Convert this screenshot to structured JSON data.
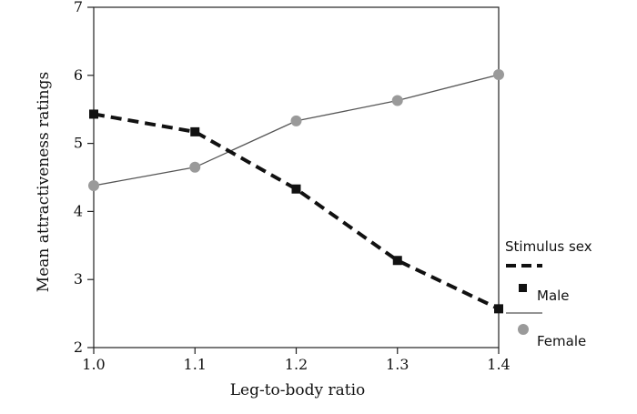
{
  "chart_data": {
    "type": "line",
    "title": "",
    "xlabel": "Leg-to-body ratio",
    "ylabel": "Mean attractiveness ratings",
    "x": [
      1.0,
      1.1,
      1.2,
      1.3,
      1.4
    ],
    "x_tick_labels": [
      "1.0",
      "1.1",
      "1.2",
      "1.3",
      "1.4"
    ],
    "xlim": [
      1.0,
      1.4
    ],
    "ylim": [
      2,
      7
    ],
    "y_ticks": [
      2,
      3,
      4,
      5,
      6,
      7
    ],
    "y_tick_labels": [
      "2",
      "3",
      "4",
      "5",
      "6",
      "7"
    ],
    "grid": false,
    "legend": {
      "title": "Stimulus sex",
      "placement": "right"
    },
    "series": [
      {
        "name": "Male",
        "values": [
          5.43,
          5.17,
          4.33,
          3.28,
          2.57
        ],
        "line_style": "dashed",
        "marker": "square",
        "color": "#111111"
      },
      {
        "name": "Female",
        "values": [
          4.38,
          4.65,
          5.33,
          5.63,
          6.01
        ],
        "line_style": "solid",
        "marker": "circle",
        "color": "#555555",
        "marker_color": "#9a9a9a"
      }
    ]
  }
}
